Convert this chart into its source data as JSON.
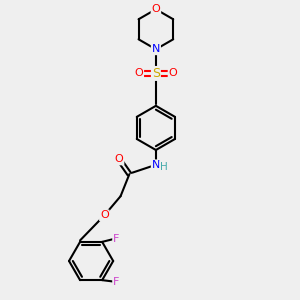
{
  "bg_color": "#efefef",
  "bond_color": "#000000",
  "atom_colors": {
    "O": "#ff0000",
    "N": "#0000ff",
    "S": "#ccaa00",
    "F": "#cc44cc",
    "H": "#44aaaa",
    "C": "#000000"
  },
  "figsize": [
    3.0,
    3.0
  ],
  "dpi": 100,
  "xlim": [
    0,
    10
  ],
  "ylim": [
    0,
    10
  ]
}
